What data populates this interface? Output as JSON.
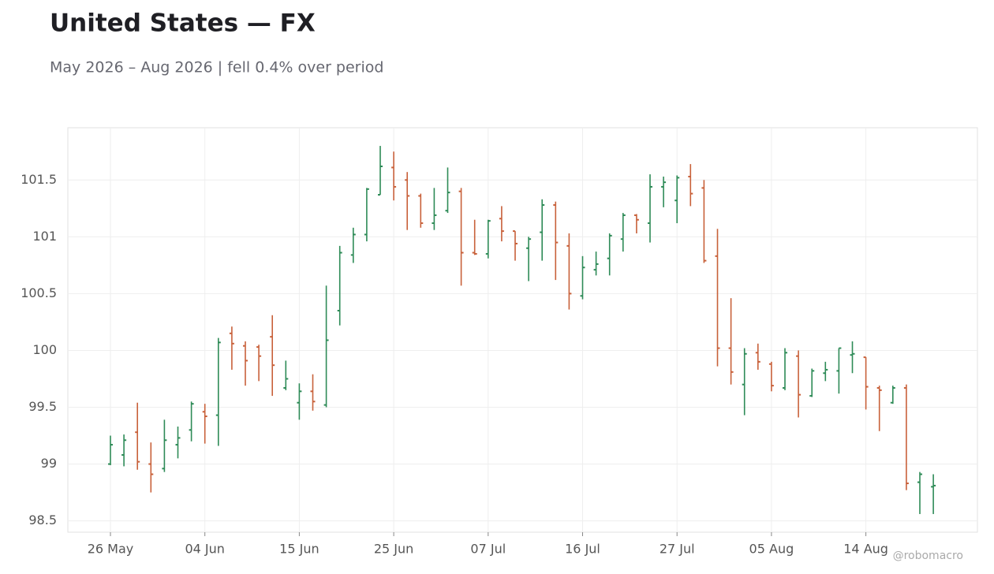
{
  "chart_data": {
    "type": "ohlc",
    "title": "United States — FX",
    "subtitle": "May 2026 – Aug 2026 | fell 0.4% over period",
    "watermark": "@robomacro",
    "categories": [
      "26 May",
      null,
      null,
      null,
      null,
      null,
      null,
      "04 Jun",
      null,
      null,
      null,
      null,
      null,
      null,
      "15 Jun",
      null,
      null,
      null,
      null,
      null,
      null,
      "25 Jun",
      null,
      null,
      null,
      null,
      null,
      null,
      "07 Jul",
      null,
      null,
      null,
      null,
      null,
      null,
      "16 Jul",
      null,
      null,
      null,
      null,
      null,
      null,
      "27 Jul",
      null,
      null,
      null,
      null,
      null,
      null,
      "05 Aug",
      null,
      null,
      null,
      null,
      null,
      null,
      "14 Aug",
      null,
      null,
      null,
      null,
      null
    ],
    "open": [
      99.0,
      99.08,
      99.28,
      99.0,
      98.96,
      99.17,
      99.3,
      99.46,
      99.43,
      100.15,
      100.04,
      100.03,
      100.12,
      99.67,
      99.54,
      99.64,
      99.52,
      100.35,
      100.84,
      101.02,
      101.37,
      101.61,
      101.5,
      101.36,
      101.12,
      101.23,
      101.4,
      100.86,
      100.85,
      101.16,
      101.05,
      100.9,
      101.04,
      101.28,
      100.92,
      100.48,
      100.71,
      100.81,
      100.98,
      101.19,
      101.12,
      101.44,
      101.32,
      101.53,
      101.43,
      100.83,
      100.02,
      99.7,
      99.98,
      99.88,
      99.67,
      99.95,
      99.6,
      99.8,
      99.82,
      99.96,
      99.94,
      99.67,
      99.54,
      99.67,
      98.84,
      98.8
    ],
    "high": [
      99.25,
      99.26,
      99.54,
      99.19,
      99.39,
      99.33,
      99.55,
      99.53,
      100.11,
      100.21,
      100.08,
      100.05,
      100.31,
      99.91,
      99.71,
      99.79,
      100.57,
      100.92,
      101.08,
      101.43,
      101.8,
      101.75,
      101.57,
      101.38,
      101.43,
      101.61,
      101.43,
      101.15,
      101.15,
      101.27,
      101.05,
      101.0,
      101.33,
      101.31,
      101.03,
      100.83,
      100.87,
      101.03,
      101.21,
      101.2,
      101.55,
      101.53,
      101.54,
      101.64,
      101.5,
      101.07,
      100.46,
      100.02,
      100.06,
      99.9,
      100.02,
      100.0,
      99.84,
      99.9,
      100.02,
      100.08,
      99.94,
      99.69,
      99.69,
      99.7,
      98.93,
      98.91
    ],
    "low": [
      98.99,
      98.98,
      98.95,
      98.75,
      98.93,
      99.05,
      99.2,
      99.18,
      99.16,
      99.83,
      99.69,
      99.73,
      99.6,
      99.65,
      99.39,
      99.47,
      99.5,
      100.22,
      100.77,
      100.96,
      101.37,
      101.32,
      101.06,
      101.08,
      101.06,
      101.21,
      100.57,
      100.84,
      100.81,
      100.96,
      100.79,
      100.61,
      100.79,
      100.62,
      100.36,
      100.45,
      100.66,
      100.66,
      100.87,
      101.03,
      100.95,
      101.26,
      101.12,
      101.27,
      100.77,
      99.86,
      99.7,
      99.43,
      99.83,
      99.64,
      99.65,
      99.41,
      99.59,
      99.73,
      99.62,
      99.8,
      99.48,
      99.29,
      99.53,
      98.77,
      98.56,
      98.56
    ],
    "close": [
      99.17,
      99.21,
      99.02,
      98.91,
      99.21,
      99.23,
      99.53,
      99.42,
      100.07,
      100.06,
      99.91,
      99.95,
      99.87,
      99.75,
      99.64,
      99.55,
      100.09,
      100.86,
      101.02,
      101.42,
      101.62,
      101.44,
      101.36,
      101.12,
      101.19,
      101.39,
      100.86,
      100.85,
      101.14,
      101.05,
      100.94,
      100.98,
      101.28,
      100.95,
      100.5,
      100.73,
      100.76,
      101.01,
      101.19,
      101.15,
      101.44,
      101.48,
      101.52,
      101.38,
      100.79,
      100.02,
      99.81,
      99.97,
      99.9,
      99.69,
      99.98,
      99.61,
      99.82,
      99.83,
      100.02,
      99.97,
      99.68,
      99.65,
      99.67,
      98.83,
      98.91,
      98.81
    ],
    "up_color": "#2e8b57",
    "down_color": "#c8613a",
    "ylim": [
      98.4,
      101.96
    ],
    "yticks": [
      98.5,
      99,
      99.5,
      100,
      100.5,
      101,
      101.5
    ],
    "grid": true
  }
}
